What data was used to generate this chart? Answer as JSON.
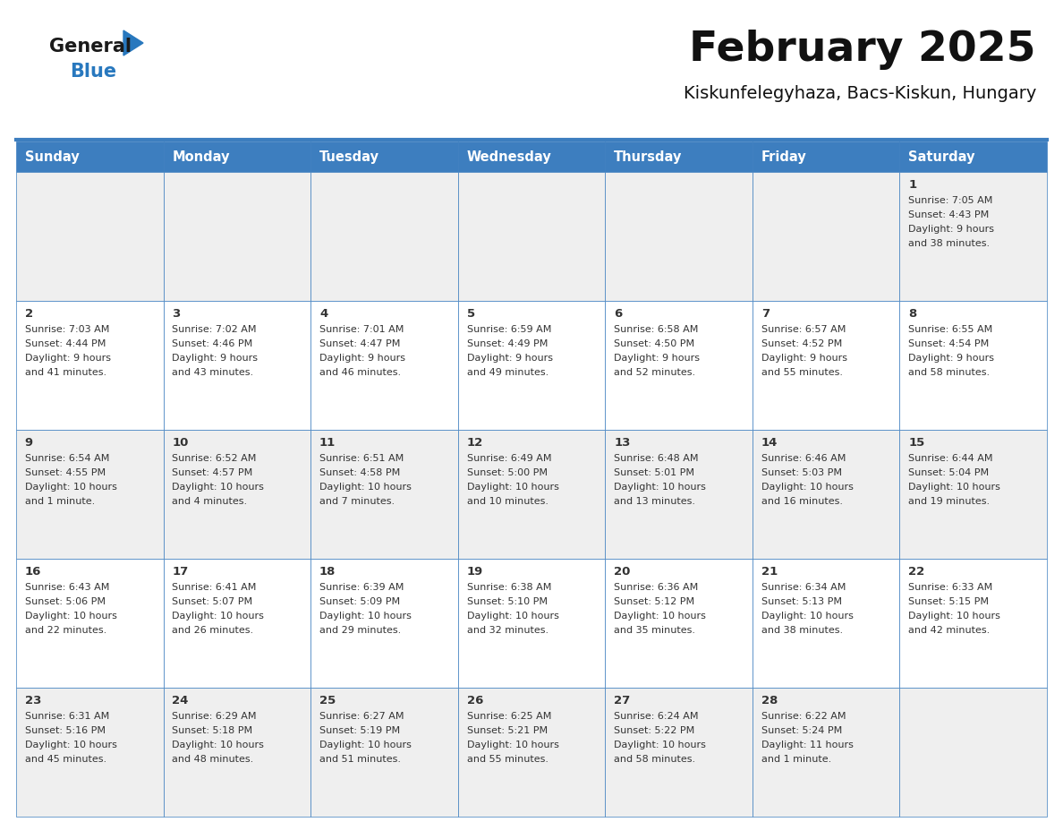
{
  "title": "February 2025",
  "subtitle": "Kiskunfelegyhaza, Bacs-Kiskun, Hungary",
  "header_bg": "#3d7ebf",
  "header_text": "#ffffff",
  "row0_bg": "#efefef",
  "row_bg_alt": "#efefef",
  "row_bg_white": "#ffffff",
  "border_color": "#3d7ebf",
  "text_color": "#333333",
  "day_headers": [
    "Sunday",
    "Monday",
    "Tuesday",
    "Wednesday",
    "Thursday",
    "Friday",
    "Saturday"
  ],
  "logo_general_color": "#1a1a1a",
  "logo_blue_color": "#2878be",
  "days": [
    {
      "day": 1,
      "col": 6,
      "row": 0,
      "sunrise": "7:05 AM",
      "sunset": "4:43 PM",
      "daylight_l1": "Daylight: 9 hours",
      "daylight_l2": "and 38 minutes."
    },
    {
      "day": 2,
      "col": 0,
      "row": 1,
      "sunrise": "7:03 AM",
      "sunset": "4:44 PM",
      "daylight_l1": "Daylight: 9 hours",
      "daylight_l2": "and 41 minutes."
    },
    {
      "day": 3,
      "col": 1,
      "row": 1,
      "sunrise": "7:02 AM",
      "sunset": "4:46 PM",
      "daylight_l1": "Daylight: 9 hours",
      "daylight_l2": "and 43 minutes."
    },
    {
      "day": 4,
      "col": 2,
      "row": 1,
      "sunrise": "7:01 AM",
      "sunset": "4:47 PM",
      "daylight_l1": "Daylight: 9 hours",
      "daylight_l2": "and 46 minutes."
    },
    {
      "day": 5,
      "col": 3,
      "row": 1,
      "sunrise": "6:59 AM",
      "sunset": "4:49 PM",
      "daylight_l1": "Daylight: 9 hours",
      "daylight_l2": "and 49 minutes."
    },
    {
      "day": 6,
      "col": 4,
      "row": 1,
      "sunrise": "6:58 AM",
      "sunset": "4:50 PM",
      "daylight_l1": "Daylight: 9 hours",
      "daylight_l2": "and 52 minutes."
    },
    {
      "day": 7,
      "col": 5,
      "row": 1,
      "sunrise": "6:57 AM",
      "sunset": "4:52 PM",
      "daylight_l1": "Daylight: 9 hours",
      "daylight_l2": "and 55 minutes."
    },
    {
      "day": 8,
      "col": 6,
      "row": 1,
      "sunrise": "6:55 AM",
      "sunset": "4:54 PM",
      "daylight_l1": "Daylight: 9 hours",
      "daylight_l2": "and 58 minutes."
    },
    {
      "day": 9,
      "col": 0,
      "row": 2,
      "sunrise": "6:54 AM",
      "sunset": "4:55 PM",
      "daylight_l1": "Daylight: 10 hours",
      "daylight_l2": "and 1 minute."
    },
    {
      "day": 10,
      "col": 1,
      "row": 2,
      "sunrise": "6:52 AM",
      "sunset": "4:57 PM",
      "daylight_l1": "Daylight: 10 hours",
      "daylight_l2": "and 4 minutes."
    },
    {
      "day": 11,
      "col": 2,
      "row": 2,
      "sunrise": "6:51 AM",
      "sunset": "4:58 PM",
      "daylight_l1": "Daylight: 10 hours",
      "daylight_l2": "and 7 minutes."
    },
    {
      "day": 12,
      "col": 3,
      "row": 2,
      "sunrise": "6:49 AM",
      "sunset": "5:00 PM",
      "daylight_l1": "Daylight: 10 hours",
      "daylight_l2": "and 10 minutes."
    },
    {
      "day": 13,
      "col": 4,
      "row": 2,
      "sunrise": "6:48 AM",
      "sunset": "5:01 PM",
      "daylight_l1": "Daylight: 10 hours",
      "daylight_l2": "and 13 minutes."
    },
    {
      "day": 14,
      "col": 5,
      "row": 2,
      "sunrise": "6:46 AM",
      "sunset": "5:03 PM",
      "daylight_l1": "Daylight: 10 hours",
      "daylight_l2": "and 16 minutes."
    },
    {
      "day": 15,
      "col": 6,
      "row": 2,
      "sunrise": "6:44 AM",
      "sunset": "5:04 PM",
      "daylight_l1": "Daylight: 10 hours",
      "daylight_l2": "and 19 minutes."
    },
    {
      "day": 16,
      "col": 0,
      "row": 3,
      "sunrise": "6:43 AM",
      "sunset": "5:06 PM",
      "daylight_l1": "Daylight: 10 hours",
      "daylight_l2": "and 22 minutes."
    },
    {
      "day": 17,
      "col": 1,
      "row": 3,
      "sunrise": "6:41 AM",
      "sunset": "5:07 PM",
      "daylight_l1": "Daylight: 10 hours",
      "daylight_l2": "and 26 minutes."
    },
    {
      "day": 18,
      "col": 2,
      "row": 3,
      "sunrise": "6:39 AM",
      "sunset": "5:09 PM",
      "daylight_l1": "Daylight: 10 hours",
      "daylight_l2": "and 29 minutes."
    },
    {
      "day": 19,
      "col": 3,
      "row": 3,
      "sunrise": "6:38 AM",
      "sunset": "5:10 PM",
      "daylight_l1": "Daylight: 10 hours",
      "daylight_l2": "and 32 minutes."
    },
    {
      "day": 20,
      "col": 4,
      "row": 3,
      "sunrise": "6:36 AM",
      "sunset": "5:12 PM",
      "daylight_l1": "Daylight: 10 hours",
      "daylight_l2": "and 35 minutes."
    },
    {
      "day": 21,
      "col": 5,
      "row": 3,
      "sunrise": "6:34 AM",
      "sunset": "5:13 PM",
      "daylight_l1": "Daylight: 10 hours",
      "daylight_l2": "and 38 minutes."
    },
    {
      "day": 22,
      "col": 6,
      "row": 3,
      "sunrise": "6:33 AM",
      "sunset": "5:15 PM",
      "daylight_l1": "Daylight: 10 hours",
      "daylight_l2": "and 42 minutes."
    },
    {
      "day": 23,
      "col": 0,
      "row": 4,
      "sunrise": "6:31 AM",
      "sunset": "5:16 PM",
      "daylight_l1": "Daylight: 10 hours",
      "daylight_l2": "and 45 minutes."
    },
    {
      "day": 24,
      "col": 1,
      "row": 4,
      "sunrise": "6:29 AM",
      "sunset": "5:18 PM",
      "daylight_l1": "Daylight: 10 hours",
      "daylight_l2": "and 48 minutes."
    },
    {
      "day": 25,
      "col": 2,
      "row": 4,
      "sunrise": "6:27 AM",
      "sunset": "5:19 PM",
      "daylight_l1": "Daylight: 10 hours",
      "daylight_l2": "and 51 minutes."
    },
    {
      "day": 26,
      "col": 3,
      "row": 4,
      "sunrise": "6:25 AM",
      "sunset": "5:21 PM",
      "daylight_l1": "Daylight: 10 hours",
      "daylight_l2": "and 55 minutes."
    },
    {
      "day": 27,
      "col": 4,
      "row": 4,
      "sunrise": "6:24 AM",
      "sunset": "5:22 PM",
      "daylight_l1": "Daylight: 10 hours",
      "daylight_l2": "and 58 minutes."
    },
    {
      "day": 28,
      "col": 5,
      "row": 4,
      "sunrise": "6:22 AM",
      "sunset": "5:24 PM",
      "daylight_l1": "Daylight: 11 hours",
      "daylight_l2": "and 1 minute."
    }
  ]
}
